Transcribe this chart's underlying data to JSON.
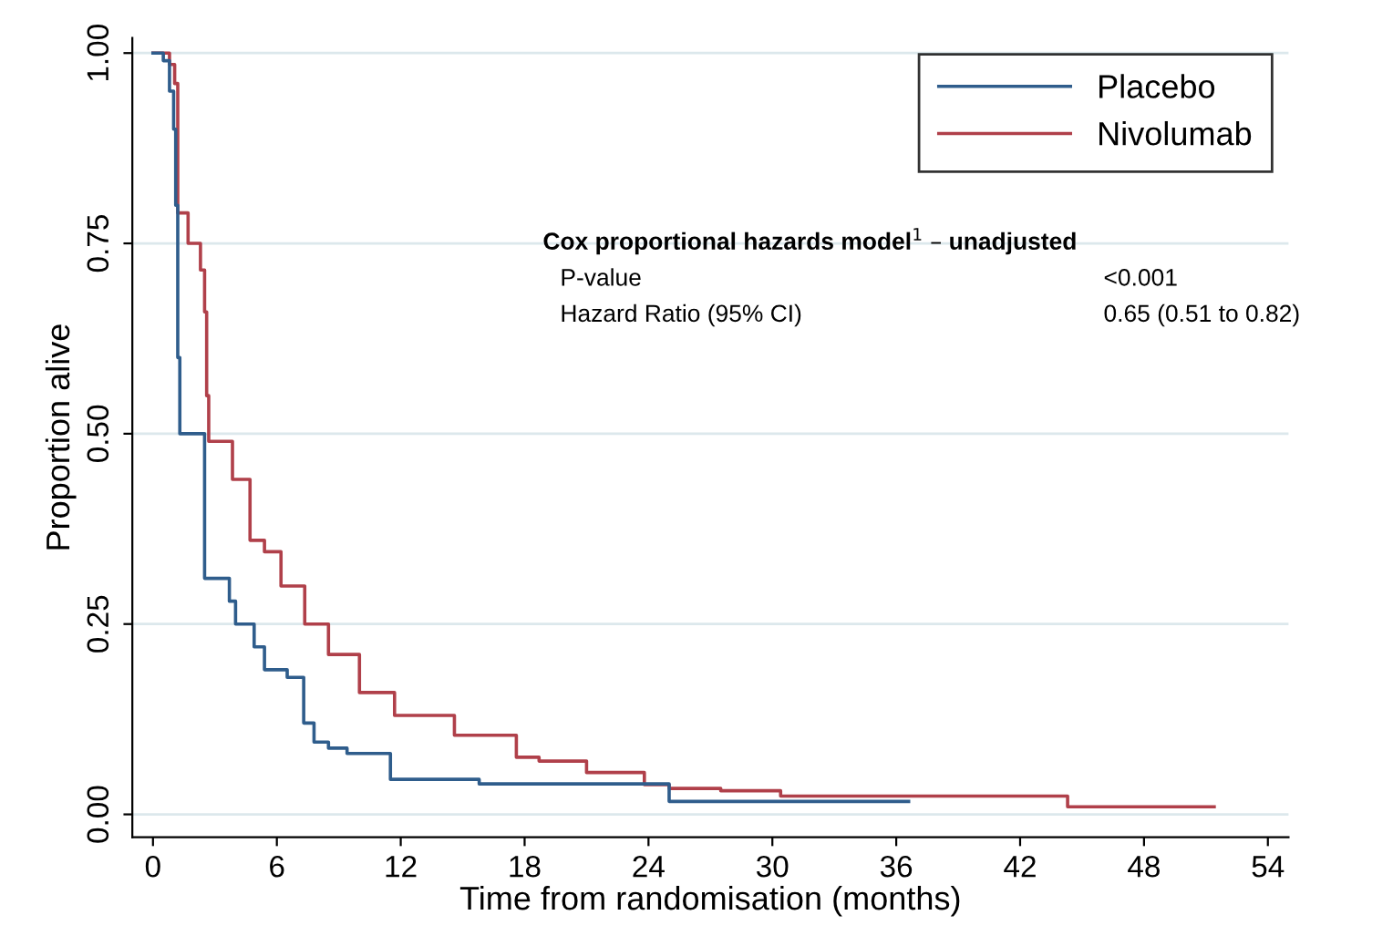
{
  "chart_data": {
    "type": "step",
    "xlabel": "Time from randomisation (months)",
    "ylabel": "Proportion alive",
    "xlim": [
      -1,
      55
    ],
    "ylim": [
      -0.03,
      1.02
    ],
    "xticks": [
      0,
      6,
      12,
      18,
      24,
      30,
      36,
      42,
      48,
      54
    ],
    "yticks": [
      {
        "value": 0,
        "label": "0.00"
      },
      {
        "value": 0.25,
        "label": "0.25"
      },
      {
        "value": 0.5,
        "label": "0.50"
      },
      {
        "value": 0.75,
        "label": "0.75"
      },
      {
        "value": 1,
        "label": "1.00"
      }
    ],
    "grid": "y",
    "legend": "top right",
    "line_style": "solid",
    "marker": "none",
    "series": [
      {
        "name": "Placebo",
        "color": "#2f5d8c",
        "x": [
          0,
          0.5,
          0.8,
          1.0,
          1.1,
          1.2,
          1.3,
          2.5,
          3.7,
          4.0,
          4.9,
          5.4,
          6.5,
          7.3,
          7.8,
          8.5,
          9.4,
          11.5,
          15.8,
          25.0,
          36.6
        ],
        "values": [
          1.0,
          0.99,
          0.95,
          0.9,
          0.8,
          0.6,
          0.5,
          0.31,
          0.28,
          0.25,
          0.22,
          0.19,
          0.18,
          0.12,
          0.095,
          0.087,
          0.08,
          0.046,
          0.04,
          0.017,
          0.017
        ]
      },
      {
        "name": "Nivolumab",
        "color": "#b0404a",
        "x": [
          0,
          0.8,
          1.05,
          1.2,
          1.7,
          2.3,
          2.5,
          2.6,
          2.7,
          3.85,
          4.7,
          5.4,
          6.2,
          7.35,
          8.5,
          10.0,
          11.7,
          14.6,
          17.6,
          18.7,
          21.0,
          23.8,
          25.0,
          27.5,
          30.4,
          44.3,
          51.4
        ],
        "values": [
          1.0,
          0.985,
          0.96,
          0.79,
          0.75,
          0.715,
          0.66,
          0.55,
          0.49,
          0.44,
          0.36,
          0.345,
          0.3,
          0.25,
          0.21,
          0.16,
          0.13,
          0.104,
          0.075,
          0.07,
          0.055,
          0.039,
          0.034,
          0.031,
          0.024,
          0.01,
          0.01
        ]
      }
    ],
    "annotations": [
      "Cox proportional hazards model$^{1}$ – unadjusted",
      "P-value",
      "<0.001",
      "Hazard Ratio (95% CI)",
      "0.65 (0.51 to 0.82)"
    ]
  }
}
